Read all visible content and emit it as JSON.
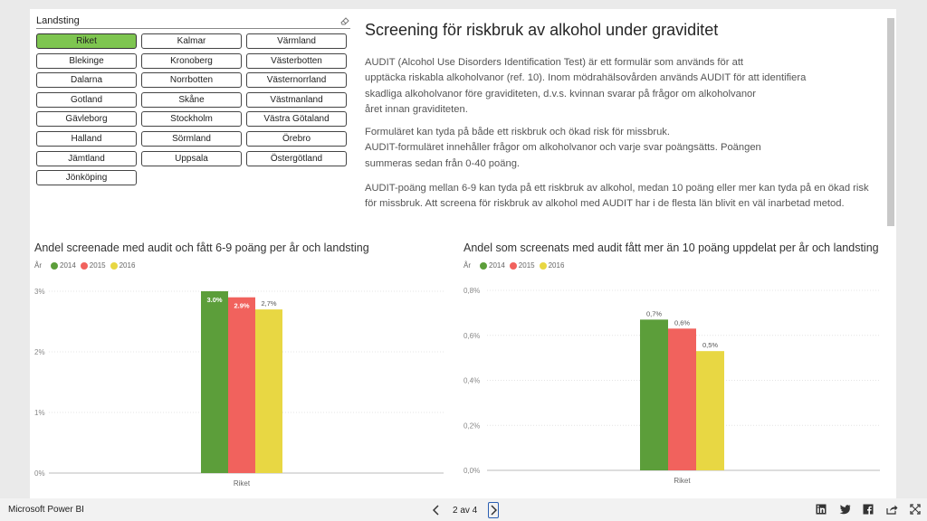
{
  "slicer": {
    "title": "Landsting",
    "selected": "Riket",
    "items": [
      "Riket",
      "Kalmar",
      "Värmland",
      "Blekinge",
      "Kronoberg",
      "Västerbotten",
      "Dalarna",
      "Norrbotten",
      "Västernorrland",
      "Gotland",
      "Skåne",
      "Västmanland",
      "Gävleborg",
      "Stockholm",
      "Västra Götaland",
      "Halland",
      "Sörmland",
      "Örebro",
      "Jämtland",
      "Uppsala",
      "Östergötland",
      "Jönköping"
    ]
  },
  "article": {
    "heading": "Screening för riskbruk av alkohol under graviditet",
    "paragraphs": [
      "AUDIT (Alcohol Use Disorders Identification Test) är ett formulär som används för att\nupptäcka riskabla alkoholvanor (ref. 10). Inom mödrahälsovården används AUDIT för att identifiera\nskadliga alkoholvanor före graviditeten, d.v.s. kvinnan svarar på frågor om alkoholvanor\nåret innan graviditeten.",
      "Formuläret kan tyda på både ett riskbruk och ökad risk för missbruk.\nAUDIT-formuläret innehåller frågor om alkoholvanor och varje svar poängsätts. Poängen\nsummeras sedan från 0-40 poäng.",
      "AUDIT-poäng mellan 6-9 kan tyda på ett riskbruk av alkohol, medan 10 poäng eller mer kan tyda på en ökad risk\nför missbruk. Att screena för riskbruk av alkohol med AUDIT har i de flesta län blivit en väl inarbetad metod."
    ]
  },
  "chart_data": [
    {
      "type": "bar",
      "title": "Andel screenade med audit och fått  6-9 poäng  per år och landsting",
      "legend_title": "År",
      "legend_position": "top-left",
      "categories": [
        "Riket"
      ],
      "series": [
        {
          "name": "2014",
          "values": [
            3.0
          ],
          "label": "3.0%",
          "color": "#5c9e3a"
        },
        {
          "name": "2015",
          "values": [
            2.9
          ],
          "label": "2.9%",
          "color": "#f1625d"
        },
        {
          "name": "2016",
          "values": [
            2.7
          ],
          "label": "2,7%",
          "color": "#e8d743"
        }
      ],
      "y_ticks": [
        "0%",
        "1%",
        "2%",
        "3%"
      ],
      "ylim": [
        0,
        3
      ],
      "grid": true
    },
    {
      "type": "bar",
      "title": "Andel som screenats med audit fått mer än 10 poäng  uppdelat per år och landsting",
      "legend_title": "År",
      "legend_position": "top-left",
      "categories": [
        "Riket"
      ],
      "series": [
        {
          "name": "2014",
          "values": [
            0.67
          ],
          "label": "0,7%",
          "color": "#5c9e3a"
        },
        {
          "name": "2015",
          "values": [
            0.63
          ],
          "label": "0,6%",
          "color": "#f1625d"
        },
        {
          "name": "2016",
          "values": [
            0.53
          ],
          "label": "0,5%",
          "color": "#e8d743"
        }
      ],
      "y_ticks": [
        "0,0%",
        "0,2%",
        "0,4%",
        "0,6%",
        "0,8%"
      ],
      "ylim": [
        0,
        0.8
      ],
      "grid": true
    }
  ],
  "footer": {
    "brand": "Microsoft Power BI",
    "page_label": "2 av 4"
  }
}
